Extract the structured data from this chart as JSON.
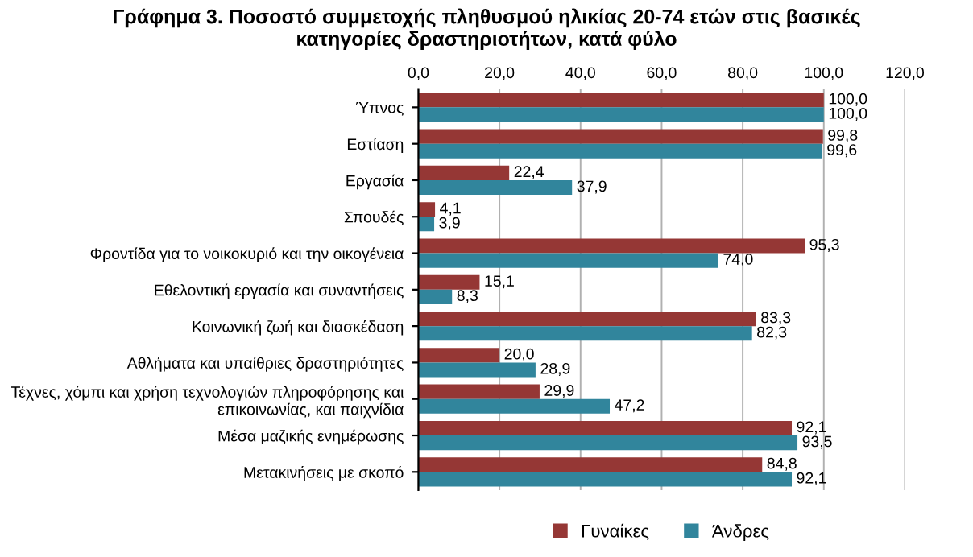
{
  "chart_data": {
    "type": "bar",
    "orientation": "horizontal",
    "title": "Γράφημα 3. Ποσοστό συμμετοχής πληθυσμού ηλικίας 20-74 ετών στις βασικές\nκατηγορίες δραστηριοτήτων, κατά φύλο",
    "categories": [
      "Ύπνος",
      "Εστίαση",
      "Εργασία",
      "Σπουδές",
      "Φροντίδα για το νοικοκυριό και την οικογένεια",
      "Εθελοντική εργασία και συναντήσεις",
      "Κοινωνική ζωή και διασκέδαση",
      "Αθλήματα και υπαίθριες δραστηριότητες",
      "Τέχνες, χόμπι και χρήση τεχνολογιών πληροφόρησης και\nεπικοινωνίας, και παιχνίδια",
      "Μέσα μαζικής ενημέρωσης",
      "Μετακινήσεις με σκοπό"
    ],
    "series": [
      {
        "name": "Γυναίκες",
        "color": "#953735",
        "values": [
          100.0,
          99.8,
          22.4,
          4.1,
          95.3,
          15.1,
          83.3,
          20.0,
          29.9,
          92.1,
          84.8
        ],
        "value_labels": [
          "100,0",
          "99,8",
          "22,4",
          "4,1",
          "95,3",
          "15,1",
          "83,3",
          "20,0",
          "29,9",
          "92,1",
          "84,8"
        ]
      },
      {
        "name": "Άνδρες",
        "color": "#31859c",
        "values": [
          100.0,
          99.6,
          37.9,
          3.9,
          74.0,
          8.3,
          82.3,
          28.9,
          47.2,
          93.5,
          92.1
        ],
        "value_labels": [
          "100,0",
          "99,6",
          "37,9",
          "3,9",
          "74,0",
          "8,3",
          "82,3",
          "28,9",
          "47,2",
          "93,5",
          "92,1"
        ]
      }
    ],
    "xlim": [
      0,
      120
    ],
    "xticks": [
      {
        "value": 0,
        "label": "0,0"
      },
      {
        "value": 20,
        "label": "20,0"
      },
      {
        "value": 40,
        "label": "40,0"
      },
      {
        "value": 60,
        "label": "60,0"
      },
      {
        "value": 80,
        "label": "80,0"
      },
      {
        "value": 100,
        "label": "100,0"
      },
      {
        "value": 120,
        "label": "120,0"
      }
    ],
    "grid": "x",
    "legend": "bottom"
  }
}
